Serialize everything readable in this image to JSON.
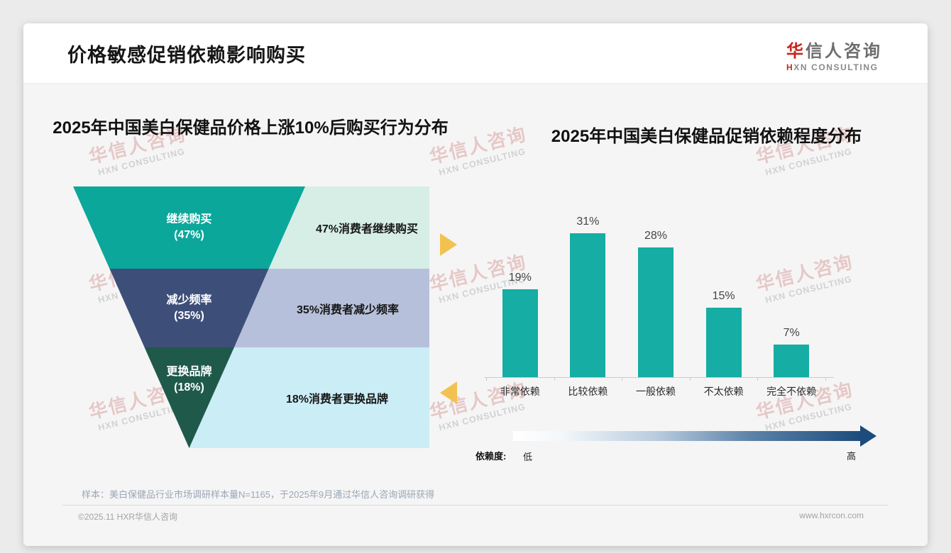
{
  "header": {
    "title": "价格敏感促销依赖影响购买",
    "logo": {
      "cn_accent": "华",
      "cn_rest": "信人咨询",
      "en_accent": "H",
      "en_rest": "XN CONSULTING",
      "accent_color": "#c5271d"
    }
  },
  "watermark": {
    "cn": "华信人咨询",
    "en": "HXN CONSULTING"
  },
  "chart_data": [
    {
      "type": "funnel",
      "title": "2025年中国美白保健品价格上涨10%后购买行为分布",
      "categories": [
        "继续购买",
        "减少频率",
        "更换品牌"
      ],
      "values": [
        47,
        35,
        18
      ],
      "value_labels": [
        "(47%)",
        "(35%)",
        "(18%)"
      ],
      "annotations": [
        "47%消费者继续购买",
        "35%消费者减少频率",
        "18%消费者更换品牌"
      ],
      "colors": [
        "#0ba79b",
        "#3d4f79",
        "#1f594a"
      ],
      "panel_colors": [
        "#d6eee6",
        "#b7c0da",
        "#cbedf6"
      ]
    },
    {
      "type": "bar",
      "title": "2025年中国美白保健品促销依赖程度分布",
      "categories": [
        "非常依赖",
        "比较依赖",
        "一般依赖",
        "不太依赖",
        "完全不依赖"
      ],
      "values": [
        19,
        31,
        28,
        15,
        7
      ],
      "value_labels": [
        "19%",
        "31%",
        "28%",
        "15%",
        "7%"
      ],
      "unit": "%",
      "ylim": [
        0,
        33
      ],
      "bar_color": "#15ada4",
      "grid": false,
      "axis_annotation": {
        "label": "依赖度:",
        "low": "低",
        "high": "高",
        "gradient_from": "#ffffff",
        "gradient_to": "#1c4c7c"
      }
    }
  ],
  "footer": {
    "sample_note": "样本：美白保健品行业市场调研样本量N=1165，于2025年9月通过华信人咨询调研获得",
    "copyright": "©2025.11 HXR华信人咨询",
    "website": "www.hxrcon.com"
  }
}
